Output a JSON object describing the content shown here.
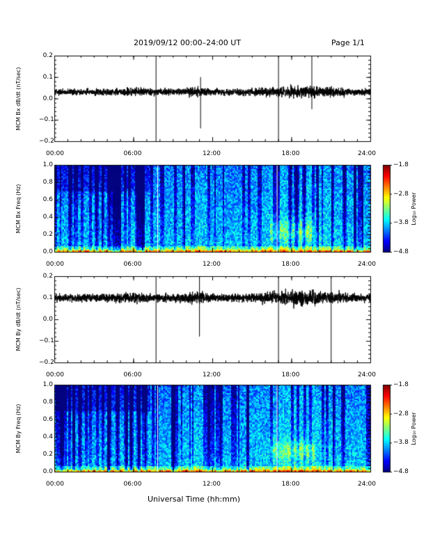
{
  "header": {
    "title": "2019/09/12  00:00–24:00 UT",
    "page": "Page 1/1"
  },
  "footer": {
    "xlabel": "Universal Time (hh:mm)"
  },
  "colors": {
    "line": "#000000",
    "background": "#ffffff"
  },
  "chart_data": [
    {
      "type": "line",
      "ylabel": "MCM Bx dB/dt (nT/sec)",
      "ylim": [
        -0.2,
        0.2
      ],
      "yticks": [
        "0.2",
        "0.1",
        "0.0",
        "−0.1",
        "−0.2"
      ],
      "xlim": [
        "00:00",
        "24:00"
      ],
      "xticks": [
        "00:00",
        "06:00",
        "12:00",
        "18:00",
        "24:00"
      ],
      "baseline": 0.03,
      "spikes": [
        {
          "t": "07:42",
          "min": -0.2,
          "max": 0.2
        },
        {
          "t": "17:00",
          "min": -0.2,
          "max": 0.2
        },
        {
          "t": "19:32",
          "min": -0.05,
          "max": 0.2
        },
        {
          "t": "11:05",
          "min": -0.14,
          "max": 0.1
        }
      ]
    },
    {
      "type": "heatmap",
      "ylabel": "MCM Bx Freq (Hz)",
      "ylim": [
        0.0,
        1.0
      ],
      "yticks": [
        "1.0",
        "0.8",
        "0.6",
        "0.4",
        "0.2",
        "0.0"
      ],
      "xticks": [
        "00:00",
        "06:00",
        "12:00",
        "18:00",
        "24:00"
      ],
      "colorbar": {
        "label": "Log₁₀ Power",
        "ticks": [
          "−1.8",
          "−2.8",
          "−3.8",
          "−4.8"
        ],
        "range": [
          -4.8,
          -1.8
        ]
      }
    },
    {
      "type": "line",
      "ylabel": "MCM By dB/dt (nT/sec)",
      "ylim": [
        -0.2,
        0.2
      ],
      "yticks": [
        "0.2",
        "0.1",
        "0.0",
        "−0.1",
        "−0.2"
      ],
      "xlim": [
        "00:00",
        "24:00"
      ],
      "xticks": [
        "00:00",
        "06:00",
        "12:00",
        "18:00",
        "24:00"
      ],
      "baseline": 0.1,
      "spikes": [
        {
          "t": "07:42",
          "min": -0.2,
          "max": 0.2
        },
        {
          "t": "17:00",
          "min": -0.2,
          "max": 0.2
        },
        {
          "t": "21:00",
          "min": -0.2,
          "max": 0.2
        },
        {
          "t": "11:00",
          "min": -0.08,
          "max": 0.2
        }
      ]
    },
    {
      "type": "heatmap",
      "ylabel": "MCM By Freq (Hz)",
      "ylim": [
        0.0,
        1.0
      ],
      "yticks": [
        "1.0",
        "0.8",
        "0.6",
        "0.4",
        "0.2",
        "0.0"
      ],
      "xticks": [
        "00:00",
        "06:00",
        "12:00",
        "18:00",
        "24:00"
      ],
      "colorbar": {
        "label": "Log₁₀ Power",
        "ticks": [
          "−1.8",
          "−2.8",
          "−3.8",
          "−4.8"
        ],
        "range": [
          -4.8,
          -1.8
        ]
      }
    }
  ]
}
